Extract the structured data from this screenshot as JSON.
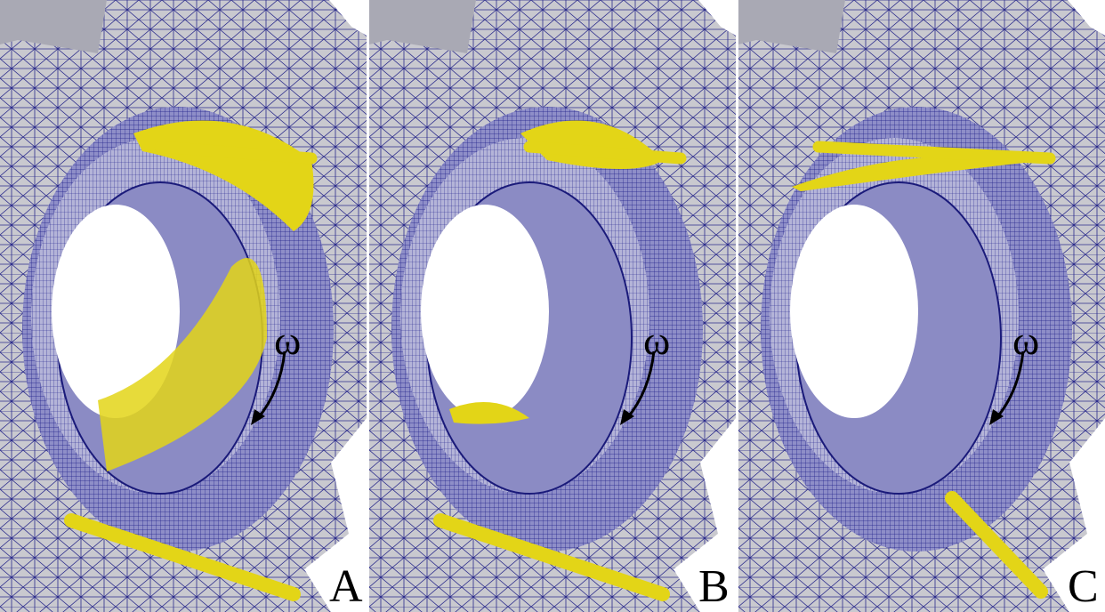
{
  "panels": [
    {
      "label": "A",
      "symbol": "ω"
    },
    {
      "label": "B",
      "symbol": "ω"
    },
    {
      "label": "C",
      "symbol": "ω"
    }
  ]
}
